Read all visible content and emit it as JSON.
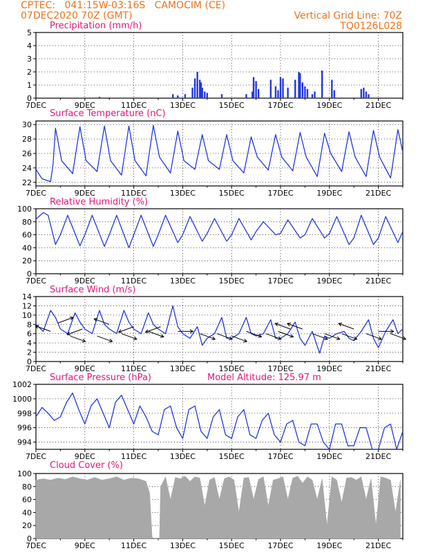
{
  "header": {
    "line1": "CPTEC:   041:15W-03:16S   CAMOCIM (CE)",
    "line2": "07DEC2020 70Z (GMT)",
    "grid_note": "Vertical Grid Line: 70Z",
    "code": "TQ0126L028"
  },
  "colors": {
    "header": "#e8741c",
    "title": "#e0177a",
    "line": "#2238e0",
    "cloud": "#a8a8a8"
  },
  "chart_data": [
    {
      "type": "bar",
      "title": "Precipitation (mm/h)",
      "ylim": [
        0,
        5
      ],
      "yticks": [
        "0",
        "1",
        "2",
        "3",
        "4",
        "5"
      ],
      "xtick_labels": [
        "7DEC",
        "9DEC",
        "11DEC",
        "13DEC",
        "15DEC",
        "17DEC",
        "19DEC",
        "21DEC"
      ],
      "x_unit": "day of December 2020",
      "x": [
        9.6,
        12.6,
        12.8,
        13.1,
        13.4,
        13.5,
        13.6,
        13.7,
        13.75,
        13.8,
        13.9,
        14.0,
        14.6,
        15.6,
        15.85,
        15.9,
        16.0,
        16.1,
        16.6,
        16.8,
        16.9,
        17.0,
        17.1,
        17.3,
        17.6,
        17.75,
        17.8,
        17.9,
        18.0,
        18.1,
        18.3,
        18.4,
        18.7,
        19.1,
        19.2,
        20.3,
        20.4,
        20.5,
        20.6
      ],
      "values": [
        0.1,
        0.3,
        0.2,
        0.3,
        0.8,
        1.5,
        2.0,
        1.4,
        1.2,
        0.8,
        0.5,
        0.4,
        0.3,
        0.3,
        0.5,
        1.6,
        1.3,
        0.7,
        1.4,
        0.9,
        0.6,
        1.6,
        1.5,
        0.8,
        1.4,
        2.0,
        1.9,
        1.2,
        0.9,
        0.7,
        0.3,
        0.5,
        2.1,
        1.4,
        0.6,
        0.7,
        0.8,
        0.5,
        0.3
      ]
    },
    {
      "type": "line",
      "title": "Surface Temperature (nC)",
      "ylim": [
        21.5,
        30.5
      ],
      "yticks": [
        "22",
        "24",
        "26",
        "28",
        "30"
      ],
      "x_unit": "day of December 2020",
      "series": [
        {
          "x": [
            7.0,
            7.25,
            7.6,
            7.7,
            7.8,
            8.05,
            8.5,
            8.8,
            9.05,
            9.5,
            9.8,
            10.05,
            10.5,
            10.8,
            11.05,
            11.5,
            11.8,
            12.05,
            12.5,
            12.8,
            13.05,
            13.5,
            13.8,
            14.05,
            14.5,
            14.8,
            15.05,
            15.5,
            15.8,
            16.05,
            16.5,
            16.8,
            17.05,
            17.5,
            17.8,
            18.05,
            18.5,
            18.8,
            19.05,
            19.5,
            19.8,
            20.05,
            20.5,
            20.8,
            21.05,
            21.5,
            21.8,
            22.0
          ],
          "y": [
            23.8,
            22.5,
            22.1,
            24.5,
            29.5,
            25.0,
            23.2,
            29.7,
            25.0,
            23.5,
            29.8,
            25.0,
            23.0,
            29.8,
            25.0,
            22.9,
            29.9,
            25.5,
            23.3,
            29.1,
            25.0,
            23.8,
            28.6,
            25.0,
            23.8,
            28.6,
            25.0,
            23.3,
            28.3,
            25.5,
            23.7,
            28.6,
            25.5,
            23.6,
            28.9,
            25.5,
            22.8,
            28.8,
            26.0,
            23.5,
            29.0,
            25.5,
            22.8,
            29.2,
            25.5,
            22.6,
            29.3,
            26.2
          ]
        }
      ]
    },
    {
      "type": "line",
      "title": "Relative Humidity (%)",
      "ylim": [
        0,
        100
      ],
      "yticks": [
        "0",
        "20",
        "40",
        "60",
        "80",
        "100"
      ],
      "x_unit": "day of December 2020",
      "series": [
        {
          "x": [
            7.0,
            7.3,
            7.5,
            7.8,
            8.0,
            8.3,
            8.8,
            9.0,
            9.3,
            9.8,
            10.0,
            10.3,
            10.8,
            11.0,
            11.3,
            11.8,
            12.0,
            12.3,
            12.8,
            13.0,
            13.3,
            13.8,
            14.0,
            14.3,
            14.8,
            15.0,
            15.3,
            15.8,
            16.0,
            16.3,
            16.8,
            17.0,
            17.3,
            17.8,
            18.0,
            18.3,
            18.8,
            19.0,
            19.3,
            19.8,
            20.0,
            20.3,
            20.8,
            21.0,
            21.3,
            21.8,
            22.0
          ],
          "y": [
            84,
            94,
            90,
            45,
            60,
            90,
            43,
            60,
            90,
            42,
            60,
            90,
            40,
            60,
            90,
            42,
            60,
            90,
            48,
            60,
            88,
            50,
            62,
            85,
            50,
            60,
            85,
            52,
            65,
            80,
            60,
            62,
            83,
            55,
            60,
            85,
            55,
            62,
            88,
            45,
            55,
            90,
            45,
            55,
            88,
            48,
            65
          ]
        }
      ]
    },
    {
      "type": "line",
      "title": "Surface Wind (m/s)",
      "ylim": [
        0,
        14
      ],
      "yticks": [
        "0",
        "2",
        "4",
        "6",
        "8",
        "10",
        "12",
        "14"
      ],
      "x_unit": "day of December 2020",
      "series": [
        {
          "x": [
            7.0,
            7.3,
            7.6,
            7.8,
            8.0,
            8.3,
            8.6,
            8.8,
            9.0,
            9.3,
            9.6,
            9.8,
            10.0,
            10.3,
            10.6,
            10.8,
            11.0,
            11.3,
            11.6,
            11.8,
            12.0,
            12.3,
            12.6,
            12.8,
            13.0,
            13.3,
            13.6,
            13.8,
            14.0,
            14.3,
            14.6,
            14.8,
            15.0,
            15.3,
            15.6,
            15.8,
            16.0,
            16.3,
            16.6,
            16.8,
            17.0,
            17.3,
            17.6,
            17.8,
            18.0,
            18.3,
            18.6,
            18.8,
            19.0,
            19.3,
            19.6,
            19.8,
            20.0,
            20.3,
            20.6,
            20.8,
            21.0,
            21.3,
            21.6,
            21.8,
            22.0
          ],
          "y": [
            8.0,
            6.5,
            11.0,
            9.5,
            7.0,
            6.0,
            10.5,
            8.5,
            7.0,
            6.0,
            11.0,
            8.0,
            7.0,
            6.0,
            11.0,
            8.5,
            7.0,
            6.0,
            10.5,
            8.0,
            7.0,
            6.0,
            12.0,
            7.5,
            6.0,
            5.0,
            7.5,
            3.5,
            5.0,
            6.0,
            9.5,
            5.0,
            5.0,
            6.0,
            9.5,
            6.0,
            5.5,
            6.0,
            9.0,
            5.0,
            5.0,
            6.0,
            8.5,
            5.0,
            3.5,
            6.5,
            1.8,
            5.5,
            5.0,
            6.0,
            6.5,
            5.0,
            4.5,
            6.5,
            9.0,
            5.0,
            3.0,
            6.5,
            9.0,
            6.0,
            7.0
          ]
        }
      ]
    },
    {
      "type": "line",
      "title": "Surface Pressure (hPa)",
      "annotation": "Model Altitude: 125.97 m",
      "ylim": [
        993,
        1002
      ],
      "yticks": [
        "994",
        "996",
        "998",
        "1000",
        "1002"
      ],
      "x_unit": "day of December 2020",
      "series": [
        {
          "x": [
            7.0,
            7.25,
            7.5,
            7.75,
            8.0,
            8.25,
            8.5,
            8.75,
            9.0,
            9.25,
            9.5,
            9.75,
            10.0,
            10.25,
            10.5,
            10.75,
            11.0,
            11.25,
            11.5,
            11.75,
            12.0,
            12.25,
            12.5,
            12.75,
            13.0,
            13.25,
            13.5,
            13.75,
            14.0,
            14.25,
            14.5,
            14.75,
            15.0,
            15.25,
            15.5,
            15.75,
            16.0,
            16.25,
            16.5,
            16.75,
            17.0,
            17.25,
            17.5,
            17.75,
            18.0,
            18.25,
            18.5,
            18.75,
            19.0,
            19.25,
            19.5,
            19.75,
            20.0,
            20.25,
            20.5,
            20.75,
            21.0,
            21.25,
            21.5,
            21.75,
            22.0
          ],
          "y": [
            997.5,
            998.8,
            998.0,
            997.0,
            997.5,
            999.5,
            1000.8,
            998.5,
            996.5,
            999.0,
            1000.0,
            998.0,
            996.0,
            999.5,
            1000.5,
            998.5,
            996.5,
            999.0,
            997.5,
            995.5,
            995.0,
            998.5,
            999.0,
            996.0,
            994.5,
            998.5,
            999.0,
            995.5,
            994.5,
            997.5,
            998.5,
            995.0,
            994.5,
            997.5,
            998.5,
            995.0,
            994.5,
            997.0,
            998.0,
            995.0,
            994.0,
            996.5,
            997.0,
            994.0,
            993.5,
            996.5,
            996.5,
            994.0,
            993.0,
            996.5,
            996.5,
            993.5,
            993.5,
            996.0,
            996.0,
            993.0,
            993.0,
            996.0,
            996.5,
            993.0,
            995.5
          ]
        }
      ]
    },
    {
      "type": "area",
      "title": "Cloud Cover (%)",
      "ylim": [
        0,
        100
      ],
      "yticks": [
        "0",
        "20",
        "40",
        "60",
        "80",
        "100"
      ],
      "xtick_labels": [
        "7DEC",
        "9DEC",
        "11DEC",
        "13DEC",
        "15DEC",
        "17DEC",
        "19DEC",
        "21DEC"
      ],
      "x_unit": "day of December 2020",
      "x": [
        7.0,
        7.3,
        7.6,
        7.9,
        8.2,
        8.5,
        8.8,
        9.1,
        9.4,
        9.7,
        10.0,
        10.3,
        10.6,
        10.9,
        11.2,
        11.5,
        11.65,
        11.75,
        11.85,
        12.05,
        12.1,
        12.3,
        12.5,
        12.7,
        12.9,
        13.1,
        13.3,
        13.5,
        13.7,
        13.9,
        14.1,
        14.3,
        14.5,
        14.7,
        14.9,
        15.1,
        15.3,
        15.5,
        15.7,
        15.9,
        16.1,
        16.3,
        16.5,
        16.7,
        16.9,
        17.1,
        17.3,
        17.5,
        17.7,
        17.9,
        18.1,
        18.3,
        18.5,
        18.7,
        18.9,
        19.1,
        19.3,
        19.5,
        19.7,
        19.9,
        20.1,
        20.3,
        20.5,
        20.7,
        20.9,
        21.1,
        21.3,
        21.5,
        21.7,
        21.9
      ],
      "values": [
        90,
        92,
        90,
        93,
        91,
        95,
        92,
        90,
        94,
        90,
        92,
        95,
        90,
        93,
        92,
        88,
        70,
        2,
        0,
        0,
        80,
        95,
        60,
        94,
        92,
        96,
        88,
        95,
        93,
        50,
        90,
        94,
        60,
        92,
        95,
        90,
        40,
        93,
        94,
        60,
        91,
        95,
        50,
        90,
        92,
        95,
        60,
        93,
        96,
        85,
        95,
        90,
        60,
        92,
        20,
        95,
        90,
        55,
        93,
        94,
        90,
        95,
        60,
        92,
        20,
        95,
        93,
        90,
        40,
        90
      ]
    }
  ]
}
